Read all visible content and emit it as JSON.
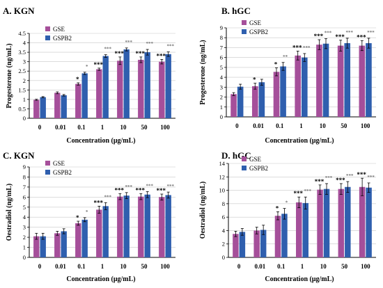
{
  "colors": {
    "GSE": "#a54f9a",
    "GSPB2": "#2f5fae",
    "axis": "#000000",
    "grid": "#c8c8c8",
    "star": "#000000",
    "star_light": "#777777"
  },
  "chart_data": [
    {
      "panel": "A. KGN",
      "type": "bar",
      "ylabel": "Progesterone (ng/mL)",
      "xlabel": "Concentration (μg/mL)",
      "categories": [
        "0",
        "0.01",
        "0.1",
        "1",
        "10",
        "50",
        "100"
      ],
      "ylim": [
        0,
        4.5
      ],
      "yticks": [
        "0",
        "0.5",
        "1",
        "1.5",
        "2",
        "2.5",
        "3",
        "3.5",
        "4",
        "4.5"
      ],
      "grid": true,
      "legend": "top-left",
      "series": [
        {
          "name": "GSE",
          "values": [
            0.98,
            1.35,
            1.82,
            2.6,
            3.05,
            3.1,
            3.0
          ],
          "errors": [
            0.03,
            0.05,
            0.06,
            0.06,
            0.2,
            0.15,
            0.12
          ],
          "stars": [
            "",
            "",
            "*",
            "***",
            "***",
            "***",
            "***"
          ]
        },
        {
          "name": "GSPB2",
          "values": [
            1.12,
            1.22,
            2.38,
            3.3,
            3.65,
            3.5,
            3.4
          ],
          "errors": [
            0.03,
            0.04,
            0.06,
            0.07,
            0.08,
            0.15,
            0.12
          ],
          "stars": [
            "",
            "",
            "*",
            "***",
            "***",
            "***",
            "***"
          ]
        }
      ]
    },
    {
      "panel": "B. hGC",
      "type": "bar",
      "ylabel": "Progesterone (ng/mL)",
      "xlabel": "Concentration (μg/mL)",
      "categories": [
        "0",
        "0.01",
        "0.1",
        "1",
        "10",
        "50",
        "100"
      ],
      "ylim": [
        0,
        9
      ],
      "yticks": [
        "0",
        "1",
        "2",
        "3",
        "4",
        "5",
        "6",
        "7",
        "8",
        "9"
      ],
      "grid": true,
      "legend": "top-left",
      "series": [
        {
          "name": "GSE",
          "values": [
            2.3,
            3.1,
            4.55,
            6.2,
            7.3,
            7.2,
            7.2
          ],
          "errors": [
            0.15,
            0.3,
            0.4,
            0.45,
            0.5,
            0.55,
            0.5
          ],
          "stars": [
            "",
            "*",
            "*",
            "***",
            "***",
            "***",
            "***"
          ]
        },
        {
          "name": "GSPB2",
          "values": [
            3.05,
            3.5,
            5.1,
            6.0,
            7.4,
            7.45,
            7.45
          ],
          "errors": [
            0.25,
            0.3,
            0.4,
            0.4,
            0.5,
            0.5,
            0.5
          ],
          "stars": [
            "",
            "",
            "**",
            "***",
            "***",
            "***",
            "***"
          ]
        }
      ]
    },
    {
      "panel": "C. KGN",
      "type": "bar",
      "ylabel": "Oestradiol (ng/mL)",
      "xlabel": "Concentration (μg/mL)",
      "categories": [
        "0",
        "0.01",
        "0.1",
        "1",
        "10",
        "50",
        "100"
      ],
      "ylim": [
        0,
        9
      ],
      "yticks": [
        "0",
        "1",
        "2",
        "3",
        "4",
        "5",
        "6",
        "7",
        "8",
        "9"
      ],
      "grid": true,
      "legend": "top-left",
      "series": [
        {
          "name": "GSE",
          "values": [
            2.1,
            2.4,
            3.4,
            4.75,
            6.05,
            6.05,
            6.0
          ],
          "errors": [
            0.3,
            0.2,
            0.2,
            0.35,
            0.3,
            0.3,
            0.3
          ],
          "stars": [
            "",
            "",
            "*",
            "***",
            "***",
            "***",
            "***"
          ]
        },
        {
          "name": "GSPB2",
          "values": [
            2.1,
            2.6,
            3.75,
            5.1,
            6.15,
            6.25,
            6.2
          ],
          "errors": [
            0.3,
            0.25,
            0.2,
            0.35,
            0.3,
            0.3,
            0.3
          ],
          "stars": [
            "",
            "",
            "*",
            "***",
            "***",
            "***",
            "***"
          ]
        }
      ]
    },
    {
      "panel": "D. hGC",
      "type": "bar",
      "ylabel": "Oestradiol (ng/mL)",
      "xlabel": "Concentration (μg/mL)",
      "categories": [
        "0",
        "0.01",
        "0.1",
        "1",
        "10",
        "50",
        "100"
      ],
      "ylim": [
        0,
        14
      ],
      "yticks": [
        "0",
        "2",
        "4",
        "6",
        "8",
        "10",
        "12",
        "14"
      ],
      "grid": true,
      "legend": "top-left",
      "series": [
        {
          "name": "GSE",
          "values": [
            3.5,
            4.0,
            6.2,
            8.2,
            10.1,
            10.2,
            10.5
          ],
          "errors": [
            0.4,
            0.5,
            0.6,
            0.8,
            0.7,
            0.8,
            1.3
          ],
          "stars": [
            "",
            "",
            "*",
            "***",
            "***",
            "***",
            "***"
          ]
        },
        {
          "name": "GSPB2",
          "values": [
            3.8,
            4.1,
            6.5,
            8.1,
            10.2,
            10.5,
            10.4
          ],
          "errors": [
            0.5,
            0.7,
            0.8,
            0.9,
            0.8,
            0.8,
            0.7
          ],
          "stars": [
            "",
            "",
            "*",
            "***",
            "***",
            "***",
            "***"
          ]
        }
      ]
    }
  ]
}
